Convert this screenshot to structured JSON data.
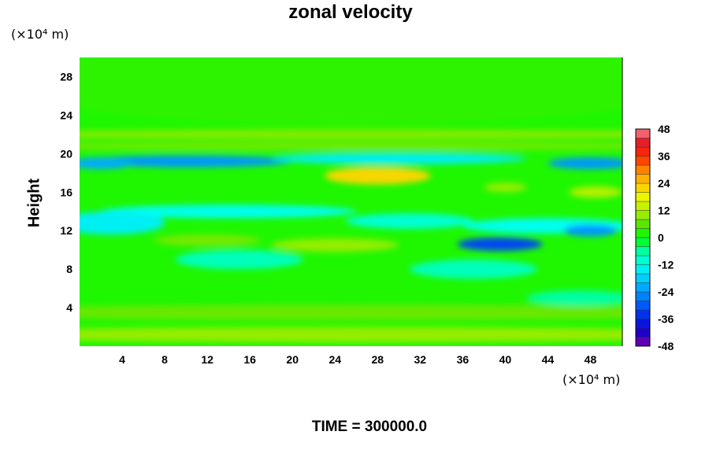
{
  "chart_data": {
    "type": "heatmap",
    "title": "zonal velocity",
    "ylabel": "Height",
    "xlabel": "",
    "x_unit": "(×10⁴ m)",
    "y_unit": "(×10⁴ m)",
    "xlim": [
      0,
      51
    ],
    "ylim": [
      0,
      30
    ],
    "x_ticks": [
      4,
      8,
      12,
      16,
      20,
      24,
      28,
      32,
      36,
      40,
      44,
      48
    ],
    "y_ticks": [
      4,
      8,
      12,
      16,
      20,
      24,
      28
    ],
    "colorbar": {
      "min": -48,
      "max": 48,
      "step": 4,
      "ticks": [
        48,
        36,
        24,
        12,
        0,
        -12,
        -24,
        -36,
        -48
      ]
    },
    "footer": "TIME = 300000.0",
    "features": [
      {
        "x": 25.5,
        "y": 30,
        "rx": 40,
        "ry": 7,
        "value": 3
      },
      {
        "x": 25.5,
        "y": 22,
        "rx": 40,
        "ry": 0.5,
        "value": 9
      },
      {
        "x": 25.5,
        "y": 20.8,
        "rx": 40,
        "ry": 0.4,
        "value": 8
      },
      {
        "x": 10,
        "y": 19.2,
        "rx": 10,
        "ry": 0.6,
        "value": -24
      },
      {
        "x": 30,
        "y": 19.5,
        "rx": 12,
        "ry": 0.6,
        "value": -14
      },
      {
        "x": 48,
        "y": 19,
        "rx": 4,
        "ry": 0.6,
        "value": -24
      },
      {
        "x": 2,
        "y": 19,
        "rx": 3,
        "ry": 0.6,
        "value": -22
      },
      {
        "x": 28,
        "y": 17.7,
        "rx": 5,
        "ry": 0.9,
        "value": 22
      },
      {
        "x": 40,
        "y": 16.5,
        "rx": 2,
        "ry": 0.5,
        "value": 10
      },
      {
        "x": 48.5,
        "y": 16,
        "rx": 2.5,
        "ry": 0.6,
        "value": 12
      },
      {
        "x": 14,
        "y": 14,
        "rx": 12,
        "ry": 0.7,
        "value": -12
      },
      {
        "x": 3,
        "y": 12.8,
        "rx": 5,
        "ry": 1.2,
        "value": -14
      },
      {
        "x": 31,
        "y": 13,
        "rx": 6,
        "ry": 0.8,
        "value": -10
      },
      {
        "x": 44,
        "y": 12.5,
        "rx": 8,
        "ry": 0.8,
        "value": -12
      },
      {
        "x": 48,
        "y": 12,
        "rx": 2.5,
        "ry": 0.6,
        "value": -24
      },
      {
        "x": 39.5,
        "y": 10.6,
        "rx": 4,
        "ry": 0.7,
        "value": -32
      },
      {
        "x": 12,
        "y": 11,
        "rx": 5,
        "ry": 0.6,
        "value": 8
      },
      {
        "x": 24,
        "y": 10.5,
        "rx": 6,
        "ry": 0.7,
        "value": 10
      },
      {
        "x": 15,
        "y": 9,
        "rx": 6,
        "ry": 1,
        "value": -8
      },
      {
        "x": 37,
        "y": 8,
        "rx": 6,
        "ry": 1,
        "value": -8
      },
      {
        "x": 47,
        "y": 5,
        "rx": 5,
        "ry": 0.8,
        "value": -6
      },
      {
        "x": 25.5,
        "y": 1.2,
        "rx": 40,
        "ry": 0.8,
        "value": 10
      },
      {
        "x": 25.5,
        "y": 3.5,
        "rx": 40,
        "ry": 0.8,
        "value": 7
      }
    ]
  }
}
